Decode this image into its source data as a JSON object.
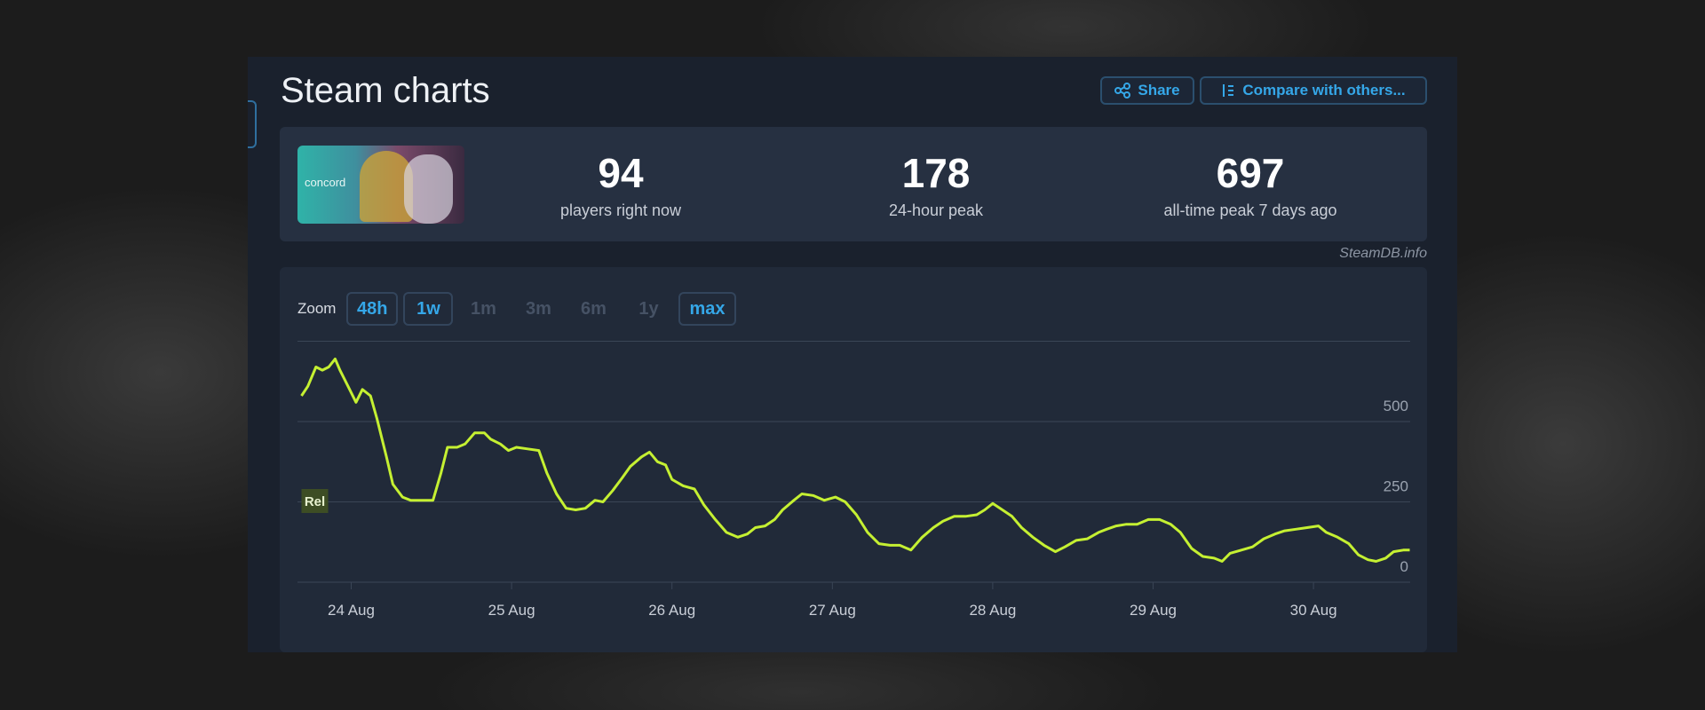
{
  "header": {
    "title": "Steam charts",
    "buttons": [
      "Share",
      "Compare with others..."
    ]
  },
  "game": {
    "thumbnail_text": "concord"
  },
  "stats": [
    {
      "value": "94",
      "label": "players right now"
    },
    {
      "value": "178",
      "label": "24-hour peak"
    },
    {
      "value": "697",
      "label": "all-time peak 7 days ago"
    }
  ],
  "source": "SteamDB.info",
  "zoom": {
    "label": "Zoom",
    "options": [
      {
        "label": "48h",
        "active": true
      },
      {
        "label": "1w",
        "active": true
      },
      {
        "label": "1m",
        "active": false
      },
      {
        "label": "3m",
        "active": false
      },
      {
        "label": "6m",
        "active": false
      },
      {
        "label": "1y",
        "active": false
      },
      {
        "label": "max",
        "active": true
      }
    ]
  },
  "chart_data": {
    "type": "line",
    "color": "#c5f032",
    "grid": true,
    "x": [
      23.69,
      23.73,
      23.78,
      23.82,
      23.86,
      23.9,
      23.93,
      23.98,
      24.03,
      24.07,
      24.12,
      24.16,
      24.22,
      24.26,
      24.32,
      24.37,
      24.44,
      24.51,
      24.56,
      24.6,
      24.66,
      24.71,
      24.77,
      24.83,
      24.87,
      24.93,
      24.98,
      25.03,
      25.1,
      25.17,
      25.22,
      25.28,
      25.34,
      25.4,
      25.46,
      25.52,
      25.57,
      25.63,
      25.69,
      25.74,
      25.81,
      25.86,
      25.91,
      25.96,
      26.0,
      26.07,
      26.14,
      26.2,
      26.27,
      26.34,
      26.41,
      26.47,
      26.52,
      26.58,
      26.64,
      26.69,
      26.76,
      26.81,
      26.88,
      26.95,
      27.02,
      27.08,
      27.15,
      27.22,
      27.29,
      27.36,
      27.42,
      27.49,
      27.56,
      27.63,
      27.69,
      27.76,
      27.83,
      27.9,
      27.95,
      28.0,
      28.06,
      28.12,
      28.18,
      28.25,
      28.32,
      28.39,
      28.45,
      28.52,
      28.59,
      28.66,
      28.71,
      28.77,
      28.83,
      28.9,
      28.97,
      29.04,
      29.11,
      29.17,
      29.24,
      29.31,
      29.38,
      29.43,
      29.48,
      29.55,
      29.62,
      29.69,
      29.76,
      29.82,
      29.89,
      29.96,
      30.03,
      30.08,
      30.15,
      30.22,
      30.28,
      30.34,
      30.39,
      30.45,
      30.5,
      30.56,
      30.6
    ],
    "values": [
      580,
      610,
      670,
      660,
      670,
      695,
      660,
      610,
      560,
      600,
      580,
      510,
      390,
      305,
      265,
      255,
      255,
      255,
      340,
      420,
      420,
      430,
      465,
      465,
      445,
      430,
      410,
      420,
      415,
      410,
      340,
      275,
      230,
      225,
      230,
      255,
      250,
      285,
      325,
      360,
      390,
      405,
      375,
      365,
      320,
      300,
      290,
      240,
      195,
      155,
      140,
      150,
      170,
      175,
      195,
      225,
      255,
      275,
      270,
      255,
      265,
      250,
      210,
      155,
      120,
      115,
      115,
      100,
      140,
      170,
      190,
      205,
      205,
      210,
      225,
      245,
      225,
      205,
      170,
      140,
      115,
      95,
      110,
      130,
      135,
      155,
      165,
      175,
      180,
      180,
      195,
      195,
      180,
      155,
      105,
      80,
      75,
      65,
      90,
      100,
      110,
      135,
      150,
      160,
      165,
      170,
      175,
      155,
      140,
      120,
      85,
      70,
      65,
      75,
      95,
      100,
      100
    ],
    "xlim": [
      23.69,
      30.6
    ],
    "xticks": [
      {
        "value": 24,
        "label": "24 Aug"
      },
      {
        "value": 25,
        "label": "25 Aug"
      },
      {
        "value": 26,
        "label": "26 Aug"
      },
      {
        "value": 27,
        "label": "27 Aug"
      },
      {
        "value": 28,
        "label": "28 Aug"
      },
      {
        "value": 29,
        "label": "29 Aug"
      },
      {
        "value": 30,
        "label": "30 Aug"
      }
    ],
    "ylim": [
      0,
      750
    ],
    "yticks": [
      0,
      250,
      500
    ],
    "annotations": [
      {
        "x": 23.69,
        "label": "Rel"
      }
    ]
  }
}
